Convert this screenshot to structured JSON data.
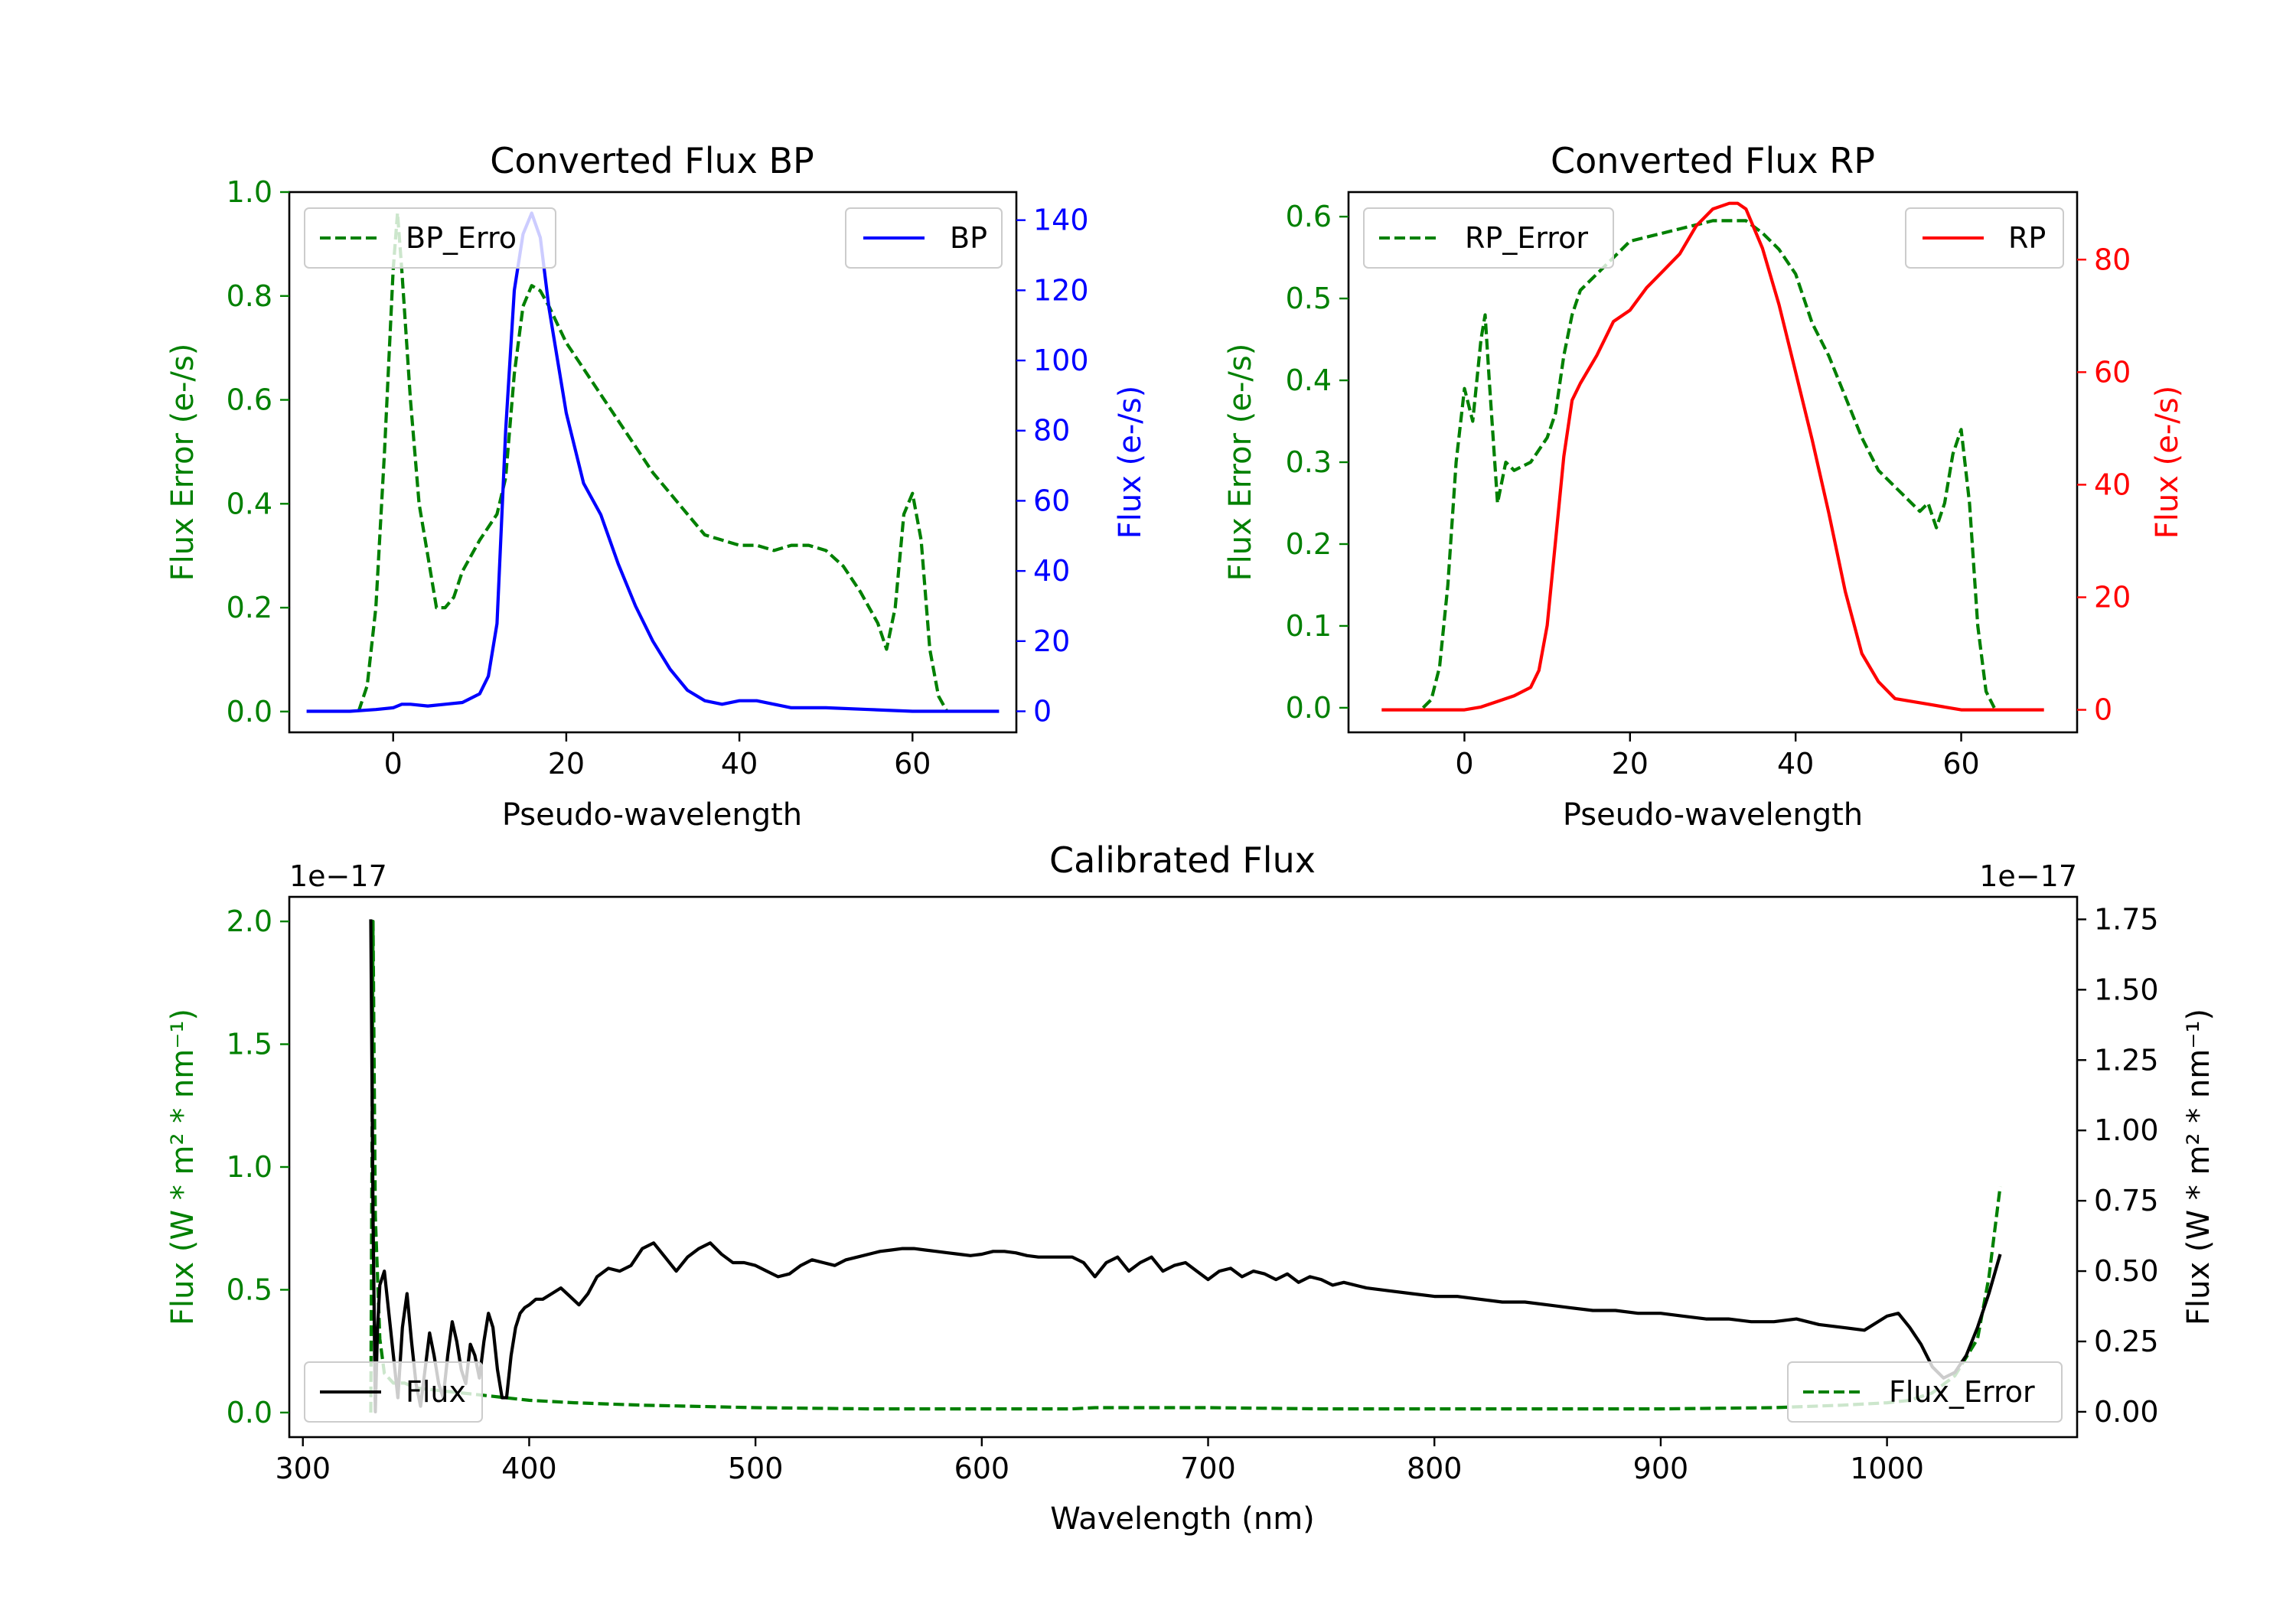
{
  "chart_data": [
    {
      "id": "bp",
      "type": "line",
      "title": "Converted Flux BP",
      "xlabel": "Pseudo-wavelength",
      "ylabel_left": "Flux Error (e-/s)",
      "ylabel_right": "Flux (e-/s)",
      "xlim": [
        -12,
        72
      ],
      "ylim_left": [
        -0.04,
        1.0
      ],
      "ylim_right": [
        -6,
        148
      ],
      "xticks": [
        0,
        20,
        40,
        60
      ],
      "yticks_left": [
        0.0,
        0.2,
        0.4,
        0.6,
        0.8,
        1.0
      ],
      "yticks_right": [
        0,
        20,
        40,
        60,
        80,
        100,
        120,
        140
      ],
      "colors": {
        "error": "#008000",
        "flux": "#0000ff",
        "left_axis": "#008000",
        "right_axis": "#0000ff"
      },
      "legend_left": "BP_Erro",
      "legend_right": "BP",
      "series_error": {
        "name": "BP_Error",
        "x": [
          -4,
          -3,
          -2,
          -1,
          0,
          0.5,
          1,
          2,
          3,
          4,
          5,
          6,
          7,
          8,
          10,
          12,
          13,
          14,
          15,
          16,
          17,
          18,
          20,
          22,
          24,
          26,
          28,
          30,
          32,
          34,
          36,
          38,
          40,
          42,
          44,
          46,
          48,
          50,
          52,
          54,
          56,
          57,
          58,
          59,
          60,
          61,
          62,
          63,
          64
        ],
        "y": [
          0.0,
          0.05,
          0.2,
          0.5,
          0.85,
          0.96,
          0.85,
          0.6,
          0.4,
          0.3,
          0.2,
          0.2,
          0.22,
          0.27,
          0.33,
          0.38,
          0.45,
          0.65,
          0.78,
          0.82,
          0.81,
          0.78,
          0.71,
          0.66,
          0.61,
          0.56,
          0.51,
          0.46,
          0.42,
          0.38,
          0.34,
          0.33,
          0.32,
          0.32,
          0.31,
          0.32,
          0.32,
          0.31,
          0.28,
          0.23,
          0.17,
          0.12,
          0.2,
          0.38,
          0.42,
          0.33,
          0.12,
          0.03,
          0.0
        ]
      },
      "series_flux": {
        "name": "BP",
        "x": [
          -10,
          -5,
          -2,
          0,
          1,
          2,
          4,
          6,
          8,
          10,
          11,
          12,
          13,
          14,
          15,
          16,
          17,
          18,
          19,
          20,
          22,
          24,
          26,
          28,
          30,
          32,
          34,
          36,
          38,
          40,
          42,
          44,
          46,
          48,
          50,
          55,
          60,
          65,
          70
        ],
        "y": [
          0,
          0,
          0.5,
          1,
          2,
          2,
          1.5,
          2,
          2.5,
          5,
          10,
          25,
          80,
          120,
          136,
          142,
          135,
          115,
          100,
          85,
          65,
          56,
          42,
          30,
          20,
          12,
          6,
          3,
          2,
          3,
          3,
          2,
          1,
          1,
          1,
          0.5,
          0,
          0,
          0
        ]
      }
    },
    {
      "id": "rp",
      "type": "line",
      "title": "Converted Flux RP",
      "xlabel": "Pseudo-wavelength",
      "ylabel_left": "Flux Error (e-/s)",
      "ylabel_right": "Flux (e-/s)",
      "xlim": [
        -14,
        74
      ],
      "ylim_left": [
        -0.03,
        0.63
      ],
      "ylim_right": [
        -4,
        92
      ],
      "xticks": [
        0,
        20,
        40,
        60
      ],
      "yticks_left": [
        0.0,
        0.1,
        0.2,
        0.3,
        0.4,
        0.5,
        0.6
      ],
      "yticks_right": [
        0,
        20,
        40,
        60,
        80
      ],
      "colors": {
        "error": "#008000",
        "flux": "#ff0000",
        "left_axis": "#008000",
        "right_axis": "#ff0000"
      },
      "legend_left": "RP_Error",
      "legend_right": "RP",
      "series_error": {
        "name": "RP_Error",
        "x": [
          -5,
          -4,
          -3,
          -2,
          -1,
          0,
          1,
          2,
          2.5,
          3,
          4,
          5,
          6,
          8,
          10,
          11,
          12,
          13,
          14,
          16,
          18,
          20,
          22,
          24,
          26,
          28,
          30,
          32,
          34,
          36,
          38,
          40,
          42,
          44,
          46,
          48,
          50,
          52,
          54,
          55,
          56,
          57,
          58,
          59,
          60,
          61,
          62,
          63,
          64
        ],
        "y": [
          0.0,
          0.01,
          0.05,
          0.15,
          0.3,
          0.39,
          0.35,
          0.45,
          0.48,
          0.4,
          0.25,
          0.3,
          0.29,
          0.3,
          0.33,
          0.36,
          0.43,
          0.48,
          0.51,
          0.53,
          0.55,
          0.57,
          0.575,
          0.58,
          0.585,
          0.59,
          0.595,
          0.595,
          0.595,
          0.58,
          0.56,
          0.53,
          0.47,
          0.43,
          0.38,
          0.33,
          0.29,
          0.27,
          0.25,
          0.24,
          0.25,
          0.22,
          0.25,
          0.31,
          0.34,
          0.25,
          0.1,
          0.02,
          0.0
        ]
      },
      "series_flux": {
        "name": "RP",
        "x": [
          -10,
          -5,
          0,
          2,
          4,
          6,
          8,
          9,
          10,
          11,
          12,
          13,
          14,
          16,
          18,
          20,
          22,
          24,
          26,
          28,
          30,
          32,
          33,
          34,
          36,
          38,
          40,
          42,
          44,
          46,
          48,
          50,
          52,
          54,
          56,
          58,
          60,
          62,
          65,
          70
        ],
        "y": [
          0,
          0,
          0,
          0.5,
          1.5,
          2.5,
          4,
          7,
          15,
          30,
          45,
          55,
          58,
          63,
          69,
          71,
          75,
          78,
          81,
          86,
          89,
          90,
          90,
          89,
          82,
          72,
          60,
          48,
          35,
          21,
          10,
          5,
          2,
          1.5,
          1,
          0.5,
          0,
          0,
          0,
          0
        ]
      }
    },
    {
      "id": "cal",
      "type": "line",
      "title": "Calibrated Flux",
      "xlabel": "Wavelength (nm)",
      "ylabel_left": "Flux (W * m² * nm⁻¹)",
      "ylabel_right": "Flux (W * m² * nm⁻¹)",
      "offset_left": "1e−17",
      "offset_right": "1e−17",
      "xlim": [
        294,
        1084
      ],
      "ylim_left": [
        -0.1,
        2.1
      ],
      "ylim_right": [
        -0.09,
        1.83
      ],
      "xticks": [
        300,
        400,
        500,
        600,
        700,
        800,
        900,
        1000
      ],
      "yticks_left": [
        "0.0",
        "0.5",
        "1.0",
        "1.5",
        "2.0"
      ],
      "yticks_right": [
        "0.00",
        "0.25",
        "0.50",
        "0.75",
        "1.00",
        "1.25",
        "1.50",
        "1.75"
      ],
      "colors": {
        "error": "#008000",
        "flux": "#000000",
        "left_axis": "#008000",
        "right_axis": "#000000"
      },
      "legend_left": "Flux",
      "legend_right": "Flux_Error",
      "series_error": {
        "name": "Flux_Error",
        "x": [
          330,
          331,
          332,
          334,
          336,
          340,
          345,
          350,
          360,
          370,
          380,
          390,
          400,
          420,
          450,
          500,
          550,
          600,
          640,
          650,
          700,
          750,
          800,
          850,
          900,
          950,
          980,
          1000,
          1010,
          1020,
          1030,
          1040,
          1045,
          1050
        ],
        "y": [
          0.0,
          2.0,
          0.8,
          0.3,
          0.16,
          0.12,
          0.12,
          0.1,
          0.09,
          0.08,
          0.07,
          0.06,
          0.05,
          0.04,
          0.03,
          0.02,
          0.015,
          0.015,
          0.015,
          0.02,
          0.02,
          0.015,
          0.015,
          0.015,
          0.015,
          0.02,
          0.03,
          0.04,
          0.05,
          0.08,
          0.15,
          0.3,
          0.55,
          0.92
        ]
      },
      "series_flux": {
        "name": "Flux",
        "x": [
          330,
          331,
          332,
          333,
          334,
          336,
          338,
          340,
          342,
          344,
          346,
          348,
          350,
          352,
          354,
          356,
          358,
          360,
          362,
          364,
          366,
          368,
          370,
          372,
          374,
          376,
          378,
          380,
          382,
          384,
          386,
          388,
          390,
          392,
          394,
          396,
          398,
          400,
          403,
          406,
          410,
          414,
          418,
          422,
          426,
          430,
          435,
          440,
          445,
          450,
          455,
          460,
          465,
          470,
          475,
          480,
          485,
          490,
          495,
          500,
          505,
          510,
          515,
          520,
          525,
          530,
          535,
          540,
          545,
          550,
          555,
          560,
          565,
          570,
          575,
          580,
          585,
          590,
          595,
          600,
          605,
          610,
          615,
          620,
          625,
          630,
          635,
          640,
          645,
          650,
          655,
          660,
          665,
          670,
          675,
          680,
          685,
          690,
          695,
          700,
          705,
          710,
          715,
          720,
          725,
          730,
          735,
          740,
          745,
          750,
          755,
          760,
          770,
          780,
          790,
          800,
          810,
          820,
          830,
          840,
          850,
          860,
          870,
          880,
          890,
          900,
          910,
          920,
          930,
          940,
          950,
          960,
          970,
          980,
          990,
          1000,
          1005,
          1010,
          1015,
          1020,
          1025,
          1030,
          1035,
          1040,
          1045,
          1050
        ],
        "y": [
          1.75,
          0.7,
          0.0,
          0.3,
          0.45,
          0.5,
          0.35,
          0.2,
          0.05,
          0.3,
          0.42,
          0.25,
          0.1,
          0.02,
          0.15,
          0.28,
          0.2,
          0.1,
          0.05,
          0.2,
          0.32,
          0.25,
          0.15,
          0.1,
          0.24,
          0.2,
          0.12,
          0.25,
          0.35,
          0.3,
          0.15,
          0.05,
          0.05,
          0.2,
          0.3,
          0.35,
          0.37,
          0.38,
          0.4,
          0.4,
          0.42,
          0.44,
          0.41,
          0.38,
          0.42,
          0.48,
          0.51,
          0.5,
          0.52,
          0.58,
          0.6,
          0.55,
          0.5,
          0.55,
          0.58,
          0.6,
          0.56,
          0.53,
          0.53,
          0.52,
          0.5,
          0.48,
          0.49,
          0.52,
          0.54,
          0.53,
          0.52,
          0.54,
          0.55,
          0.56,
          0.57,
          0.575,
          0.58,
          0.58,
          0.575,
          0.57,
          0.565,
          0.56,
          0.555,
          0.56,
          0.57,
          0.57,
          0.565,
          0.555,
          0.55,
          0.55,
          0.55,
          0.55,
          0.53,
          0.48,
          0.53,
          0.55,
          0.5,
          0.53,
          0.55,
          0.5,
          0.52,
          0.53,
          0.5,
          0.47,
          0.5,
          0.51,
          0.48,
          0.5,
          0.49,
          0.47,
          0.49,
          0.46,
          0.48,
          0.47,
          0.45,
          0.46,
          0.44,
          0.43,
          0.42,
          0.41,
          0.41,
          0.4,
          0.39,
          0.39,
          0.38,
          0.37,
          0.36,
          0.36,
          0.35,
          0.35,
          0.34,
          0.33,
          0.33,
          0.32,
          0.32,
          0.33,
          0.31,
          0.3,
          0.29,
          0.34,
          0.35,
          0.3,
          0.24,
          0.16,
          0.12,
          0.14,
          0.2,
          0.3,
          0.42,
          0.56
        ]
      }
    }
  ]
}
